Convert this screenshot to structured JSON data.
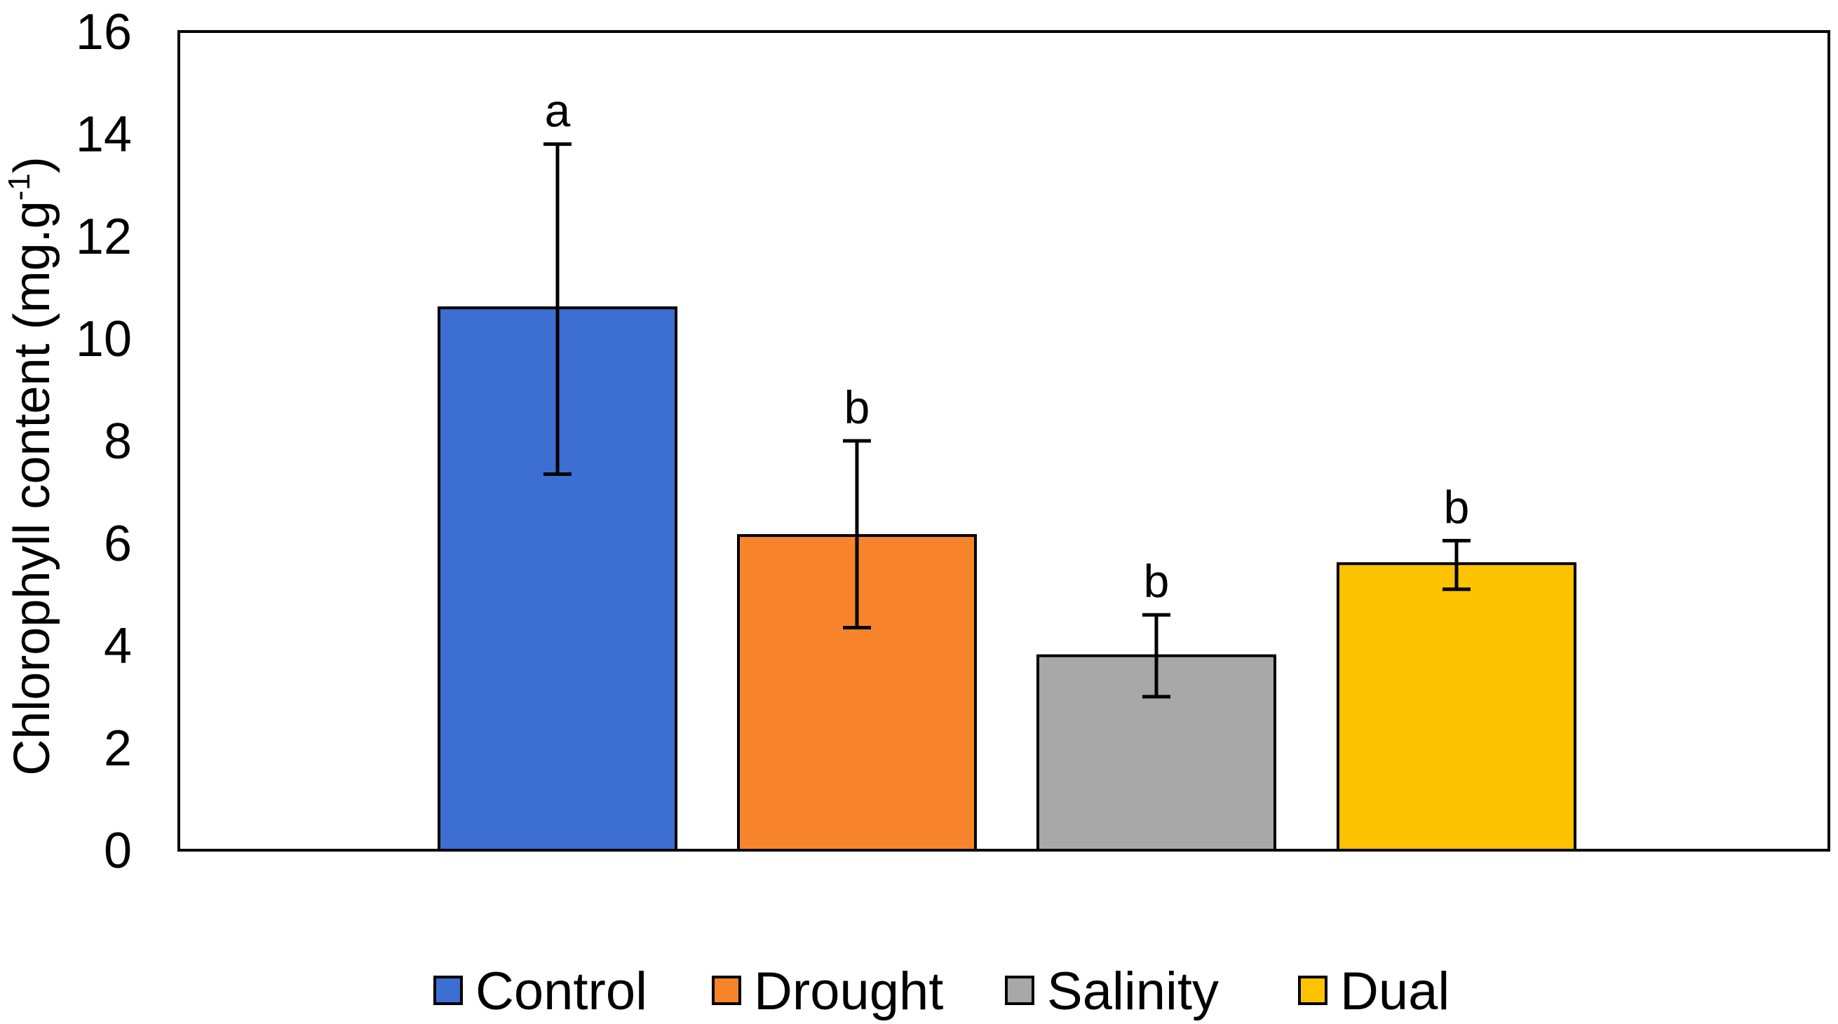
{
  "chart_data": {
    "type": "bar",
    "title": "",
    "xlabel": "",
    "ylabel": "Chlorophyll content (mg.g",
    "ylabel_superscript": "-1",
    "ylabel_suffix": ")",
    "ylim": [
      0,
      16
    ],
    "yticks": [
      0,
      2,
      4,
      6,
      8,
      10,
      12,
      14,
      16
    ],
    "grid": false,
    "legend_position": "bottom",
    "categories": [
      "Control",
      "Drought",
      "Salinity",
      "Dual"
    ],
    "values": [
      10.6,
      6.15,
      3.8,
      5.6
    ],
    "error_low": [
      7.35,
      4.35,
      3.0,
      5.1
    ],
    "error_high": [
      13.8,
      8.0,
      4.6,
      6.05
    ],
    "significance": [
      "a",
      "b",
      "b",
      "b"
    ],
    "colors": [
      "#3C6FD1",
      "#F7842B",
      "#A8A8A8",
      "#FEC300"
    ]
  }
}
